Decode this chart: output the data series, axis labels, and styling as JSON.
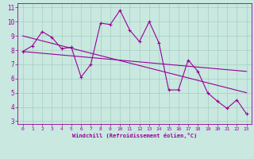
{
  "xlabel": "Windchill (Refroidissement éolien,°C)",
  "bg_color": "#c8e8e0",
  "line_color": "#990099",
  "xlim": [
    -0.5,
    23.5
  ],
  "ylim": [
    2.8,
    11.3
  ],
  "xticks": [
    0,
    1,
    2,
    3,
    4,
    5,
    6,
    7,
    8,
    9,
    10,
    11,
    12,
    13,
    14,
    15,
    16,
    17,
    18,
    19,
    20,
    21,
    22,
    23
  ],
  "yticks": [
    3,
    4,
    5,
    6,
    7,
    8,
    9,
    10,
    11
  ],
  "series1_x": [
    0,
    1,
    2,
    3,
    4,
    5,
    6,
    7,
    8,
    9,
    10,
    11,
    12,
    13,
    14,
    15,
    16,
    17,
    18,
    19,
    20,
    21,
    22,
    23
  ],
  "series1_y": [
    7.9,
    8.3,
    9.3,
    8.9,
    8.1,
    8.2,
    6.1,
    7.0,
    9.9,
    9.8,
    10.8,
    9.4,
    8.6,
    10.0,
    8.5,
    5.2,
    5.2,
    7.3,
    6.5,
    5.0,
    4.4,
    3.9,
    4.5,
    3.5
  ],
  "series2_x": [
    0,
    23
  ],
  "series2_y": [
    9.0,
    5.0
  ],
  "series3_x": [
    0,
    23
  ],
  "series3_y": [
    7.9,
    6.5
  ]
}
